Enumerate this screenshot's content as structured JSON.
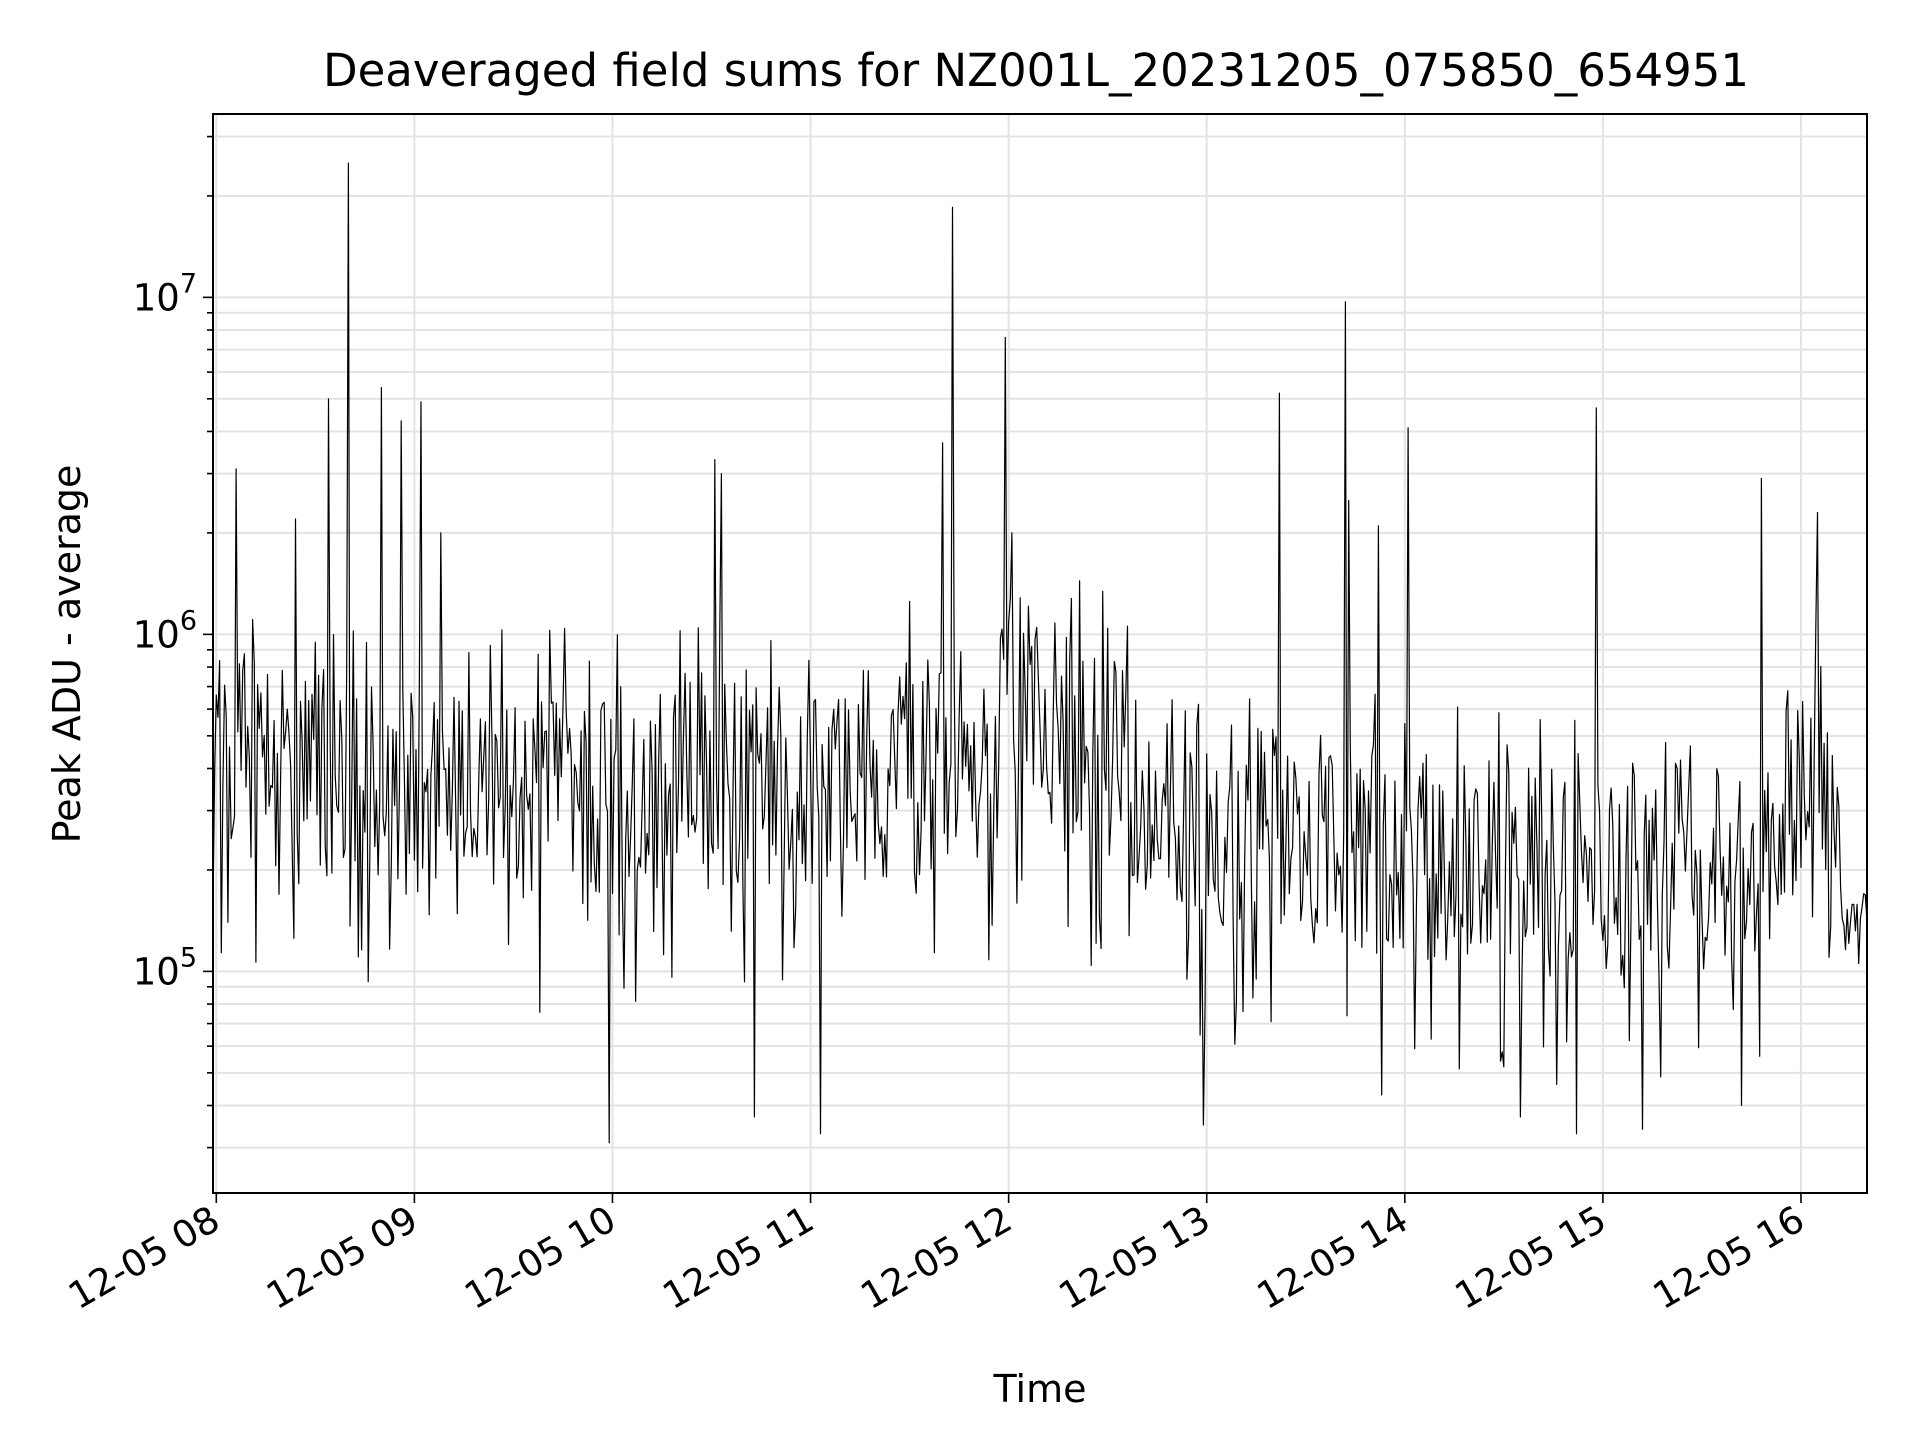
{
  "chart_data": {
    "type": "line",
    "title": "Deaveraged field sums for NZ001L_20231205_075850_654951",
    "xlabel": "Time",
    "ylabel": "Peak ADU - average",
    "yscale": "log",
    "ylim": [
      22000,
      35000000
    ],
    "xlim": [
      "2023-12-05 07:59",
      "2023-12-05 16:20"
    ],
    "grid": true,
    "line_color": "#000000",
    "x_ticks": [
      "12-05 08",
      "12-05 09",
      "12-05 10",
      "12-05 11",
      "12-05 12",
      "12-05 13",
      "12-05 14",
      "12-05 15",
      "12-05 16"
    ],
    "y_ticks": [
      {
        "base": "10",
        "exp": "5",
        "value": 100000
      },
      {
        "base": "10",
        "exp": "6",
        "value": 1000000
      },
      {
        "base": "10",
        "exp": "7",
        "value": 10000000
      }
    ],
    "sampling_minutes": 0.5,
    "baseline": [
      {
        "x": "2023-12-05 07:59",
        "y": 450000
      },
      {
        "x": "2023-12-05 09:00",
        "y": 330000
      },
      {
        "x": "2023-12-05 10:00",
        "y": 340000
      },
      {
        "x": "2023-12-05 11:00",
        "y": 380000
      },
      {
        "x": "2023-12-05 11:55",
        "y": 420000
      },
      {
        "x": "2023-12-05 12:00",
        "y": 700000
      },
      {
        "x": "2023-12-05 12:30",
        "y": 420000
      },
      {
        "x": "2023-12-05 13:00",
        "y": 270000
      },
      {
        "x": "2023-12-05 14:00",
        "y": 230000
      },
      {
        "x": "2023-12-05 15:00",
        "y": 190000
      },
      {
        "x": "2023-12-05 15:50",
        "y": 220000
      },
      {
        "x": "2023-12-05 16:05",
        "y": 520000
      },
      {
        "x": "2023-12-05 16:13",
        "y": 120000
      },
      {
        "x": "2023-12-05 16:20",
        "y": 140000
      }
    ],
    "peaks": [
      {
        "x": "2023-12-05 08:06",
        "y": 3100000
      },
      {
        "x": "2023-12-05 08:24",
        "y": 2200000
      },
      {
        "x": "2023-12-05 08:34",
        "y": 5000000
      },
      {
        "x": "2023-12-05 08:40",
        "y": 25000000
      },
      {
        "x": "2023-12-05 08:50",
        "y": 5400000
      },
      {
        "x": "2023-12-05 08:56",
        "y": 4300000
      },
      {
        "x": "2023-12-05 09:02",
        "y": 4900000
      },
      {
        "x": "2023-12-05 09:08",
        "y": 2000000
      },
      {
        "x": "2023-12-05 10:31",
        "y": 3300000
      },
      {
        "x": "2023-12-05 10:33",
        "y": 3000000
      },
      {
        "x": "2023-12-05 11:40",
        "y": 3700000
      },
      {
        "x": "2023-12-05 11:43",
        "y": 18500000
      },
      {
        "x": "2023-12-05 11:59",
        "y": 7600000
      },
      {
        "x": "2023-12-05 12:01",
        "y": 2000000
      },
      {
        "x": "2023-12-05 13:22",
        "y": 5200000
      },
      {
        "x": "2023-12-05 13:42",
        "y": 9700000
      },
      {
        "x": "2023-12-05 13:43",
        "y": 2500000
      },
      {
        "x": "2023-12-05 13:52",
        "y": 2100000
      },
      {
        "x": "2023-12-05 14:01",
        "y": 4100000
      },
      {
        "x": "2023-12-05 14:58",
        "y": 4700000
      },
      {
        "x": "2023-12-05 15:48",
        "y": 2900000
      },
      {
        "x": "2023-12-05 16:05",
        "y": 2300000
      }
    ],
    "dips": [
      {
        "x": "2023-12-05 09:59",
        "y": 31000
      },
      {
        "x": "2023-12-05 10:43",
        "y": 37000
      },
      {
        "x": "2023-12-05 11:03",
        "y": 33000
      },
      {
        "x": "2023-12-05 12:59",
        "y": 35000
      },
      {
        "x": "2023-12-05 13:53",
        "y": 43000
      },
      {
        "x": "2023-12-05 14:35",
        "y": 37000
      },
      {
        "x": "2023-12-05 14:52",
        "y": 33000
      },
      {
        "x": "2023-12-05 15:12",
        "y": 34000
      },
      {
        "x": "2023-12-05 15:42",
        "y": 40000
      }
    ]
  }
}
